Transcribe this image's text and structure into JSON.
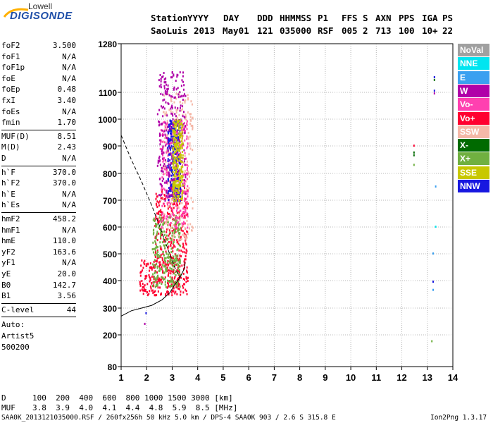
{
  "logo": {
    "line1": "Lowell",
    "line2": "DIGISONDE"
  },
  "header": {
    "labels": [
      "Station",
      "YYYY",
      "DAY",
      "DDD",
      "HHMMSS",
      "P1",
      "FFS",
      "S",
      "AXN",
      "PPS",
      "IGA",
      "PS"
    ],
    "values": [
      "SaoLuis",
      "2013",
      "May01",
      "121",
      "035000",
      "RSF",
      "005",
      "2",
      "713",
      "100",
      "10+",
      "22"
    ]
  },
  "params": [
    {
      "key": "foF2",
      "value": "3.500"
    },
    {
      "key": "foF1",
      "value": "N/A"
    },
    {
      "key": "foF1p",
      "value": "N/A"
    },
    {
      "key": "foE",
      "value": "N/A"
    },
    {
      "key": "foEp",
      "value": "0.48"
    },
    {
      "key": "fxI",
      "value": "3.40"
    },
    {
      "key": "foEs",
      "value": "N/A"
    },
    {
      "key": "fmin",
      "value": "1.70"
    },
    {
      "key": "MUF(D)",
      "value": "8.51"
    },
    {
      "key": "M(D)",
      "value": "2.43"
    },
    {
      "key": "D",
      "value": "N/A"
    },
    {
      "key": "h`F",
      "value": "370.0"
    },
    {
      "key": "h`F2",
      "value": "370.0"
    },
    {
      "key": "h`E",
      "value": "N/A"
    },
    {
      "key": "h`Es",
      "value": "N/A"
    },
    {
      "key": "hmF2",
      "value": "458.2"
    },
    {
      "key": "hmF1",
      "value": "N/A"
    },
    {
      "key": "hmE",
      "value": "110.0"
    },
    {
      "key": "yF2",
      "value": "163.6"
    },
    {
      "key": "yF1",
      "value": "N/A"
    },
    {
      "key": "yE",
      "value": "20.0"
    },
    {
      "key": "B0",
      "value": "142.7"
    },
    {
      "key": "B1",
      "value": "3.56"
    },
    {
      "key": "C-level",
      "value": "44"
    }
  ],
  "notes": [
    "Auto:",
    "Artist5",
    "500200"
  ],
  "footer": {
    "d_label": "D",
    "d_values": "100  200  400  600  800 1000 1500 3000 [km]",
    "muf_label": "MUF",
    "muf_values": "3.8  3.9  4.0  4.1  4.4  4.8  5.9  8.5 [MHz]",
    "file_line": "SAA0K_2013121035000.RSF / 260fx256h 50 kHz 5.0 km / DPS-4 SAA0K 903 / 2.6 S 315.8 E",
    "version": "Ion2Png 1.3.17"
  },
  "legend": [
    {
      "label": "NoVal",
      "color": "#a0a0a0"
    },
    {
      "label": "NNE",
      "color": "#00e5f0"
    },
    {
      "label": "E",
      "color": "#3aa0f0"
    },
    {
      "label": "W",
      "color": "#b000a8"
    },
    {
      "label": "Vo-",
      "color": "#ff40b0"
    },
    {
      "label": "Vo+",
      "color": "#ff0030"
    },
    {
      "label": "SSW",
      "color": "#f5b8a8"
    },
    {
      "label": "X-",
      "color": "#006a00"
    },
    {
      "label": "X+",
      "color": "#70b040"
    },
    {
      "label": "SSE",
      "color": "#c8c800"
    },
    {
      "label": "NNW",
      "color": "#1818e0"
    }
  ],
  "chart_data": {
    "type": "scatter",
    "title": "",
    "xlabel": "",
    "ylabel": "",
    "xlim": [
      1,
      14
    ],
    "ylim": [
      80,
      1280
    ],
    "x_ticks": [
      1,
      2,
      3,
      4,
      5,
      6,
      7,
      8,
      9,
      10,
      11,
      12,
      13,
      14
    ],
    "y_ticks": [
      80,
      200,
      300,
      400,
      500,
      600,
      700,
      800,
      900,
      1000,
      1100,
      1280
    ],
    "grid": true,
    "traces": [
      {
        "name": "",
        "style": "solid",
        "points": [
          [
            1,
            270
          ],
          [
            1.4,
            290
          ],
          [
            1.8,
            300
          ],
          [
            2.2,
            310
          ],
          [
            2.6,
            330
          ],
          [
            2.9,
            355
          ],
          [
            3.1,
            385
          ],
          [
            3.3,
            410
          ],
          [
            3.45,
            440
          ],
          [
            3.5,
            458
          ],
          [
            3.5,
            470
          ]
        ]
      },
      {
        "name": "",
        "style": "dashed",
        "points": [
          [
            1,
            940
          ],
          [
            1.4,
            850
          ],
          [
            1.8,
            770
          ],
          [
            2.2,
            680
          ],
          [
            2.6,
            580
          ],
          [
            2.9,
            500
          ],
          [
            3.1,
            450
          ],
          [
            3.3,
            410
          ]
        ]
      }
    ],
    "echo_regions": [
      {
        "freq_range": [
          1.7,
          3.6
        ],
        "height_range": [
          350,
          480
        ],
        "color": "#ff0030"
      },
      {
        "freq_range": [
          2.3,
          3.6
        ],
        "height_range": [
          480,
          750
        ],
        "color": "#ff0030"
      },
      {
        "freq_range": [
          2.2,
          3.3
        ],
        "height_range": [
          380,
          650
        ],
        "color": "#70b040"
      },
      {
        "freq_range": [
          2.6,
          3.8
        ],
        "height_range": [
          550,
          1100
        ],
        "color": "#f5b8a8"
      },
      {
        "freq_range": [
          2.5,
          3.6
        ],
        "height_range": [
          600,
          1000
        ],
        "color": "#ff40b0"
      },
      {
        "freq_range": [
          2.8,
          3.3
        ],
        "height_range": [
          700,
          1000
        ],
        "color": "#1818e0"
      },
      {
        "freq_range": [
          2.4,
          3.5
        ],
        "height_range": [
          700,
          1180
        ],
        "color": "#b000a8"
      },
      {
        "freq_range": [
          3.0,
          3.4
        ],
        "height_range": [
          700,
          1000
        ],
        "color": "#c8c800"
      }
    ],
    "isolated_echoes": [
      {
        "x": 12.45,
        "y": 905,
        "color": "#ff0030"
      },
      {
        "x": 12.45,
        "y": 880,
        "color": "#006a00"
      },
      {
        "x": 12.45,
        "y": 870,
        "color": "#006a00"
      },
      {
        "x": 12.45,
        "y": 835,
        "color": "#70b040"
      },
      {
        "x": 13.25,
        "y": 1160,
        "color": "#1818e0"
      },
      {
        "x": 13.25,
        "y": 1150,
        "color": "#006a00"
      },
      {
        "x": 13.25,
        "y": 1110,
        "color": "#1818e0"
      },
      {
        "x": 13.25,
        "y": 1100,
        "color": "#b000a8"
      },
      {
        "x": 13.3,
        "y": 755,
        "color": "#3aa0f0"
      },
      {
        "x": 13.3,
        "y": 605,
        "color": "#00e5f0"
      },
      {
        "x": 13.2,
        "y": 505,
        "color": "#3aa0f0"
      },
      {
        "x": 13.2,
        "y": 400,
        "color": "#1818e0"
      },
      {
        "x": 13.2,
        "y": 370,
        "color": "#3aa0f0"
      },
      {
        "x": 13.15,
        "y": 180,
        "color": "#70b040"
      },
      {
        "x": 1.9,
        "y": 245,
        "color": "#b000a8"
      },
      {
        "x": 1.95,
        "y": 285,
        "color": "#1818e0"
      }
    ]
  }
}
